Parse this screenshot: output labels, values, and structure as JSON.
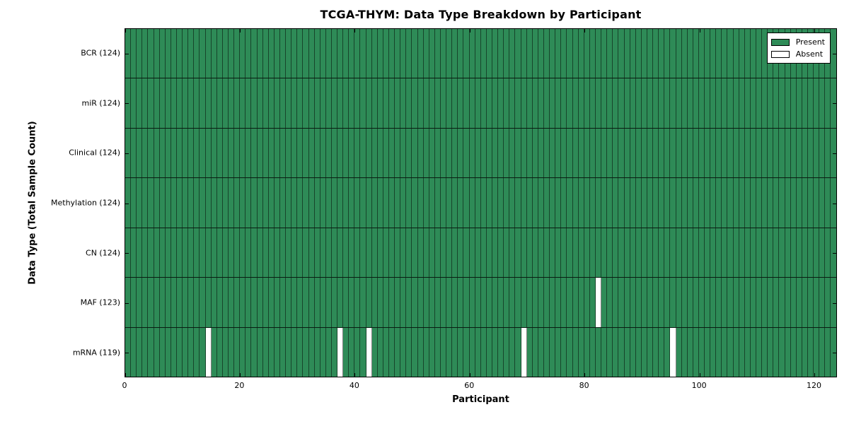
{
  "chart_data": {
    "type": "heatmap",
    "title": "TCGA-THYM: Data Type Breakdown by Participant",
    "xlabel": "Participant",
    "ylabel": "Data Type (Total Sample Count)",
    "x_ticks": [
      0,
      20,
      40,
      60,
      80,
      100,
      120
    ],
    "xlim": [
      0,
      124
    ],
    "n_participants": 124,
    "grid": false,
    "tick_direction": "in",
    "present_color": "#2e8b57",
    "absent_color": "#ffffff",
    "legend": {
      "position": "top-right",
      "entries": [
        {
          "label": "Present",
          "color": "#2e8b57"
        },
        {
          "label": "Absent",
          "color": "#ffffff"
        }
      ]
    },
    "rows": [
      {
        "data_type": "BCR",
        "label": "BCR (124)",
        "total_samples": 124,
        "absent_participants": []
      },
      {
        "data_type": "miR",
        "label": "miR (124)",
        "total_samples": 124,
        "absent_participants": []
      },
      {
        "data_type": "Clinical",
        "label": "Clinical (124)",
        "total_samples": 124,
        "absent_participants": []
      },
      {
        "data_type": "Methylation",
        "label": "Methylation (124)",
        "total_samples": 124,
        "absent_participants": []
      },
      {
        "data_type": "CN",
        "label": "CN (124)",
        "total_samples": 124,
        "absent_participants": []
      },
      {
        "data_type": "MAF",
        "label": "MAF (123)",
        "total_samples": 123,
        "absent_participants": [
          82
        ]
      },
      {
        "data_type": "mRNA",
        "label": "mRNA (119)",
        "total_samples": 119,
        "absent_participants": [
          14,
          37,
          42,
          69,
          95
        ]
      }
    ]
  }
}
